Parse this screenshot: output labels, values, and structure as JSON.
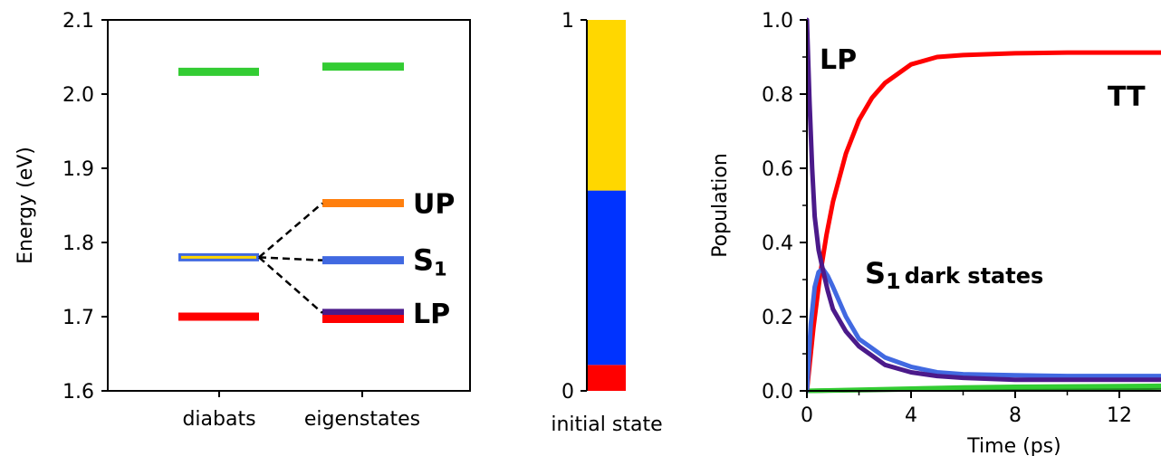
{
  "colors": {
    "green": "#33cc33",
    "orange": "#ff7f0e",
    "blue": "#4169e1",
    "purple": "#4b1a8a",
    "red": "#ff0000",
    "gold": "#ffd700",
    "pure_blue": "#0033ff",
    "dark_green": "#228b22"
  },
  "chart_data": [
    {
      "type": "level_diagram",
      "ylabel": "Energy (eV)",
      "ylim": [
        1.6,
        2.1
      ],
      "yticks": [
        "1.6",
        "1.7",
        "1.8",
        "1.9",
        "2.0",
        "2.1"
      ],
      "ytick_values": [
        1.6,
        1.7,
        1.8,
        1.9,
        2.0,
        2.1
      ],
      "categories": [
        "diabats",
        "eigenstates"
      ],
      "levels": [
        {
          "column": "diabats",
          "energy": 2.03,
          "color": "green"
        },
        {
          "column": "diabats",
          "energy": 1.78,
          "color": "blue",
          "inner_color": "gold"
        },
        {
          "column": "diabats",
          "energy": 1.7,
          "color": "red"
        },
        {
          "column": "eigenstates",
          "energy": 2.037,
          "color": "green"
        },
        {
          "column": "eigenstates",
          "energy": 1.853,
          "color": "orange",
          "label": "UP"
        },
        {
          "column": "eigenstates",
          "energy": 1.776,
          "color": "blue",
          "label": "S",
          "label_sub": "1"
        },
        {
          "column": "eigenstates",
          "energy": 1.705,
          "color": "purple",
          "label": "LP"
        },
        {
          "column": "eigenstates",
          "energy": 1.697,
          "color": "red"
        }
      ],
      "connections": [
        {
          "from": 1.78,
          "to": 1.853
        },
        {
          "from": 1.78,
          "to": 1.776
        },
        {
          "from": 1.78,
          "to": 1.705
        }
      ]
    },
    {
      "type": "stacked_bar",
      "xlabel": "initial state",
      "ylim": [
        0,
        1
      ],
      "yticks": [
        "0",
        "1"
      ],
      "ytick_values": [
        0,
        1
      ],
      "segments": [
        {
          "value": 0.07,
          "color": "red"
        },
        {
          "value": 0.47,
          "color": "pure_blue"
        },
        {
          "value": 0.46,
          "color": "gold"
        }
      ]
    },
    {
      "type": "line",
      "xlabel": "Time (ps)",
      "ylabel": "Population",
      "xlim": [
        0,
        14
      ],
      "ylim": [
        0.0,
        1.0
      ],
      "xticks": [
        "0",
        "4",
        "8",
        "12"
      ],
      "xtick_values": [
        0,
        4,
        8,
        12
      ],
      "yticks": [
        "0.0",
        "0.2",
        "0.4",
        "0.6",
        "0.8",
        "1.0"
      ],
      "ytick_values": [
        0.0,
        0.2,
        0.4,
        0.6,
        0.8,
        1.0
      ],
      "series": [
        {
          "name": "TT",
          "color": "red",
          "x": [
            0,
            0.25,
            0.5,
            0.75,
            1,
            1.5,
            2,
            2.5,
            3,
            4,
            5,
            6,
            8,
            10,
            12,
            14
          ],
          "y": [
            0.0,
            0.17,
            0.31,
            0.42,
            0.51,
            0.64,
            0.73,
            0.79,
            0.83,
            0.88,
            0.9,
            0.905,
            0.91,
            0.912,
            0.912,
            0.912
          ]
        },
        {
          "name": "LP",
          "color": "purple",
          "x": [
            0,
            0.1,
            0.2,
            0.3,
            0.45,
            0.6,
            0.8,
            1,
            1.5,
            2,
            3,
            4,
            5,
            6,
            8,
            10,
            12,
            14
          ],
          "y": [
            1.0,
            0.78,
            0.6,
            0.47,
            0.38,
            0.33,
            0.27,
            0.22,
            0.16,
            0.12,
            0.07,
            0.05,
            0.04,
            0.035,
            0.03,
            0.03,
            0.03,
            0.03
          ]
        },
        {
          "name": "S",
          "name_sub": "1",
          "name_suffix": " dark states",
          "color": "blue",
          "x": [
            0,
            0.15,
            0.3,
            0.45,
            0.6,
            0.8,
            1,
            1.5,
            2,
            3,
            4,
            5,
            6,
            8,
            10,
            12,
            14
          ],
          "y": [
            0.0,
            0.18,
            0.28,
            0.32,
            0.33,
            0.31,
            0.28,
            0.2,
            0.14,
            0.09,
            0.065,
            0.05,
            0.045,
            0.042,
            0.04,
            0.04,
            0.04
          ]
        },
        {
          "name": "",
          "color": "green",
          "x": [
            0,
            2,
            4,
            6,
            8,
            10,
            12,
            14
          ],
          "y": [
            0.0,
            0.003,
            0.006,
            0.009,
            0.011,
            0.012,
            0.013,
            0.014
          ]
        },
        {
          "name": "",
          "color": "dark_green",
          "x": [
            0,
            2,
            4,
            6,
            8,
            10,
            12,
            14
          ],
          "y": [
            0.0,
            0.002,
            0.004,
            0.006,
            0.007,
            0.008,
            0.008,
            0.009
          ]
        }
      ]
    }
  ]
}
